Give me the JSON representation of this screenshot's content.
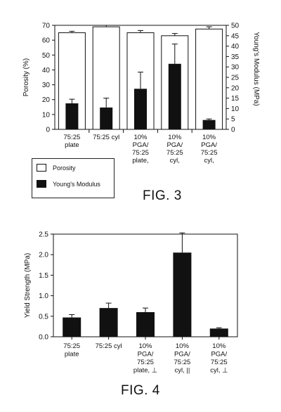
{
  "fig3_caption": "FIG. 3",
  "fig4_caption": "FIG. 4",
  "legend": {
    "porosity": "Porosity",
    "modulus": "Young's Modulus"
  },
  "chart_data": [
    {
      "type": "bar",
      "title": "",
      "categories": [
        [
          "75:25",
          "plate"
        ],
        [
          "75:25 cyl"
        ],
        [
          "10%",
          "PGA/",
          "75:25",
          "plate,"
        ],
        [
          "10%",
          "PGA/",
          "75:25",
          "cyl,"
        ],
        [
          "10%",
          "PGA/",
          "75:25",
          "cyl,"
        ]
      ],
      "series": [
        {
          "name": "Porosity",
          "axis": "left",
          "values": [
            65,
            69,
            65,
            63,
            67.5
          ],
          "errors": [
            1,
            1,
            1.5,
            1.5,
            1.5
          ],
          "color": "#ffffff"
        },
        {
          "name": "Young's Modulus",
          "axis": "right",
          "values": [
            12.5,
            10.5,
            19.5,
            31.5,
            4.5
          ],
          "errors": [
            2,
            4.5,
            8,
            9.5,
            0.5
          ],
          "color": "#111111"
        }
      ],
      "ylabel": "Porosity (%)",
      "ylim": [
        0,
        70
      ],
      "yticks": [
        "0",
        "10",
        "20",
        "30",
        "40",
        "50",
        "60",
        "70"
      ],
      "y2label": "Young's Modulus (MPa)",
      "y2lim": [
        0,
        50
      ],
      "y2ticks": [
        "0",
        "5",
        "10",
        "15",
        "20",
        "25",
        "30",
        "35",
        "40",
        "45",
        "50"
      ],
      "legend_position": "bottom-left"
    },
    {
      "type": "bar",
      "title": "",
      "categories": [
        [
          "75:25",
          "plate"
        ],
        [
          "75:25 cyl"
        ],
        [
          "10%",
          "PGA/",
          "75:25",
          "plate, ⊥"
        ],
        [
          "10%",
          "PGA/",
          "75:25",
          "cyl, ||"
        ],
        [
          "10%",
          "PGA/",
          "75:25",
          "cyl, ⊥"
        ]
      ],
      "series": [
        {
          "name": "",
          "values": [
            0.47,
            0.7,
            0.6,
            2.05,
            0.2
          ],
          "errors": [
            0.07,
            0.12,
            0.1,
            0.48,
            0.02
          ],
          "color": "#111111"
        }
      ],
      "ylabel": "Yield Strength (MPa)",
      "ylim": [
        0,
        2.5
      ],
      "yticks": [
        "0.0",
        "0.5",
        "1.0",
        "1.5",
        "2.0",
        "2.5"
      ]
    }
  ]
}
